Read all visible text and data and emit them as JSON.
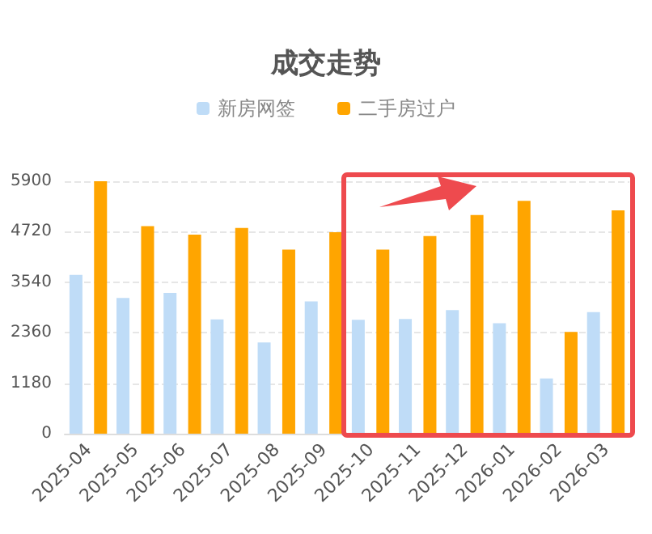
{
  "chart_data": {
    "type": "bar",
    "title": "成交走势",
    "categories": [
      "2025-04",
      "2025-05",
      "2025-06",
      "2025-07",
      "2025-08",
      "2025-09",
      "2025-10",
      "2025-11",
      "2025-12",
      "2026-01",
      "2026-02",
      "2026-03"
    ],
    "series": [
      {
        "name": "新房网签",
        "color": "#bfdcf7",
        "values": [
          3710,
          3170,
          3290,
          2670,
          2130,
          3090,
          2660,
          2680,
          2890,
          2580,
          1290,
          2840
        ]
      },
      {
        "name": "二手房过户",
        "color": "#ffa500",
        "values": [
          5900,
          4850,
          4650,
          4810,
          4300,
          4710,
          4300,
          4620,
          5110,
          5440,
          2380,
          5220
        ]
      }
    ],
    "ylim": [
      0,
      5900
    ],
    "yticks": [
      0,
      1180,
      2360,
      3540,
      4720,
      5900
    ],
    "grid": "y",
    "legend": "top"
  }
}
